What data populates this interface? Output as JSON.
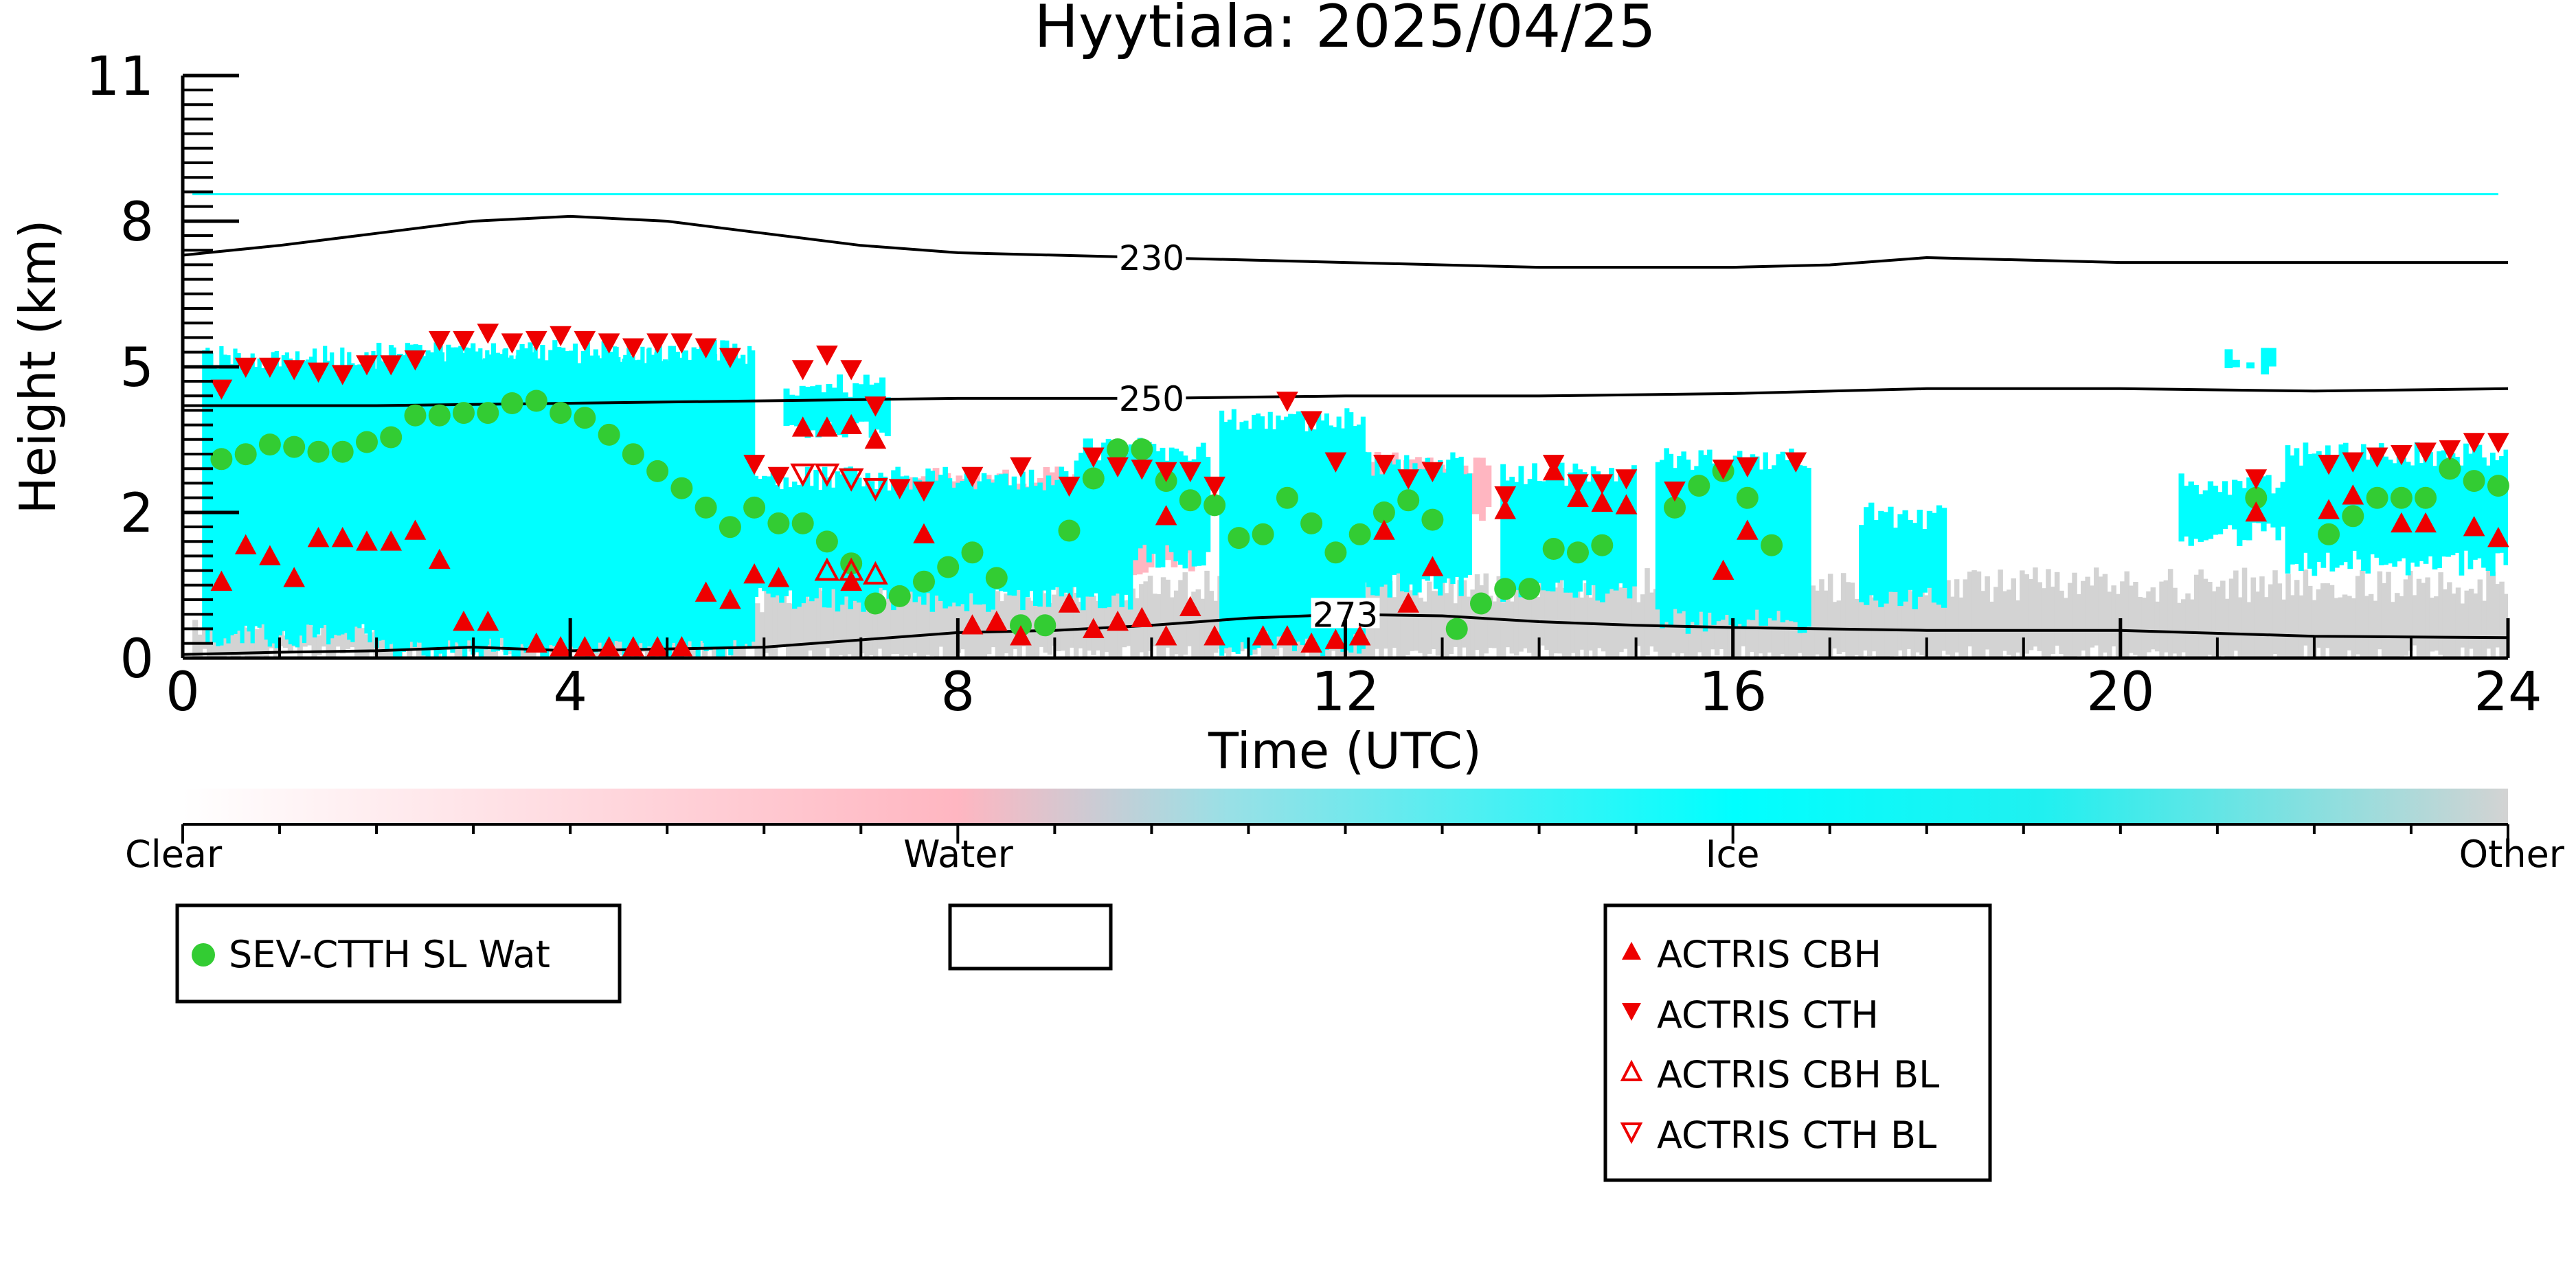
{
  "chart_data": {
    "type": "scatter",
    "title": "Hyytiala: 2025/04/25",
    "xlabel": "Time (UTC)",
    "ylabel": "Height (km)",
    "xlim": [
      0,
      24
    ],
    "ylim": [
      0,
      12
    ],
    "x_ticks": [
      0,
      4,
      8,
      12,
      16,
      20,
      24
    ],
    "y_ticks": [
      0,
      2,
      5,
      8,
      11
    ],
    "y_tick_labels": [
      "0",
      "2",
      "5",
      "8",
      "11"
    ],
    "y_axis_scale": "nonlinear (labels 0, 2, 5, 8, 11 equally spaced)",
    "background": "cloud phase mask (Clear / Water / Ice / Other)",
    "colorbar": {
      "labels": [
        "Clear",
        "Water",
        "Ice",
        "Other"
      ],
      "colors": [
        "#ffffff",
        "#ffb6c1",
        "#00ffff",
        "#d3d3d3"
      ]
    },
    "legend_left": {
      "entries": [
        {
          "label": "SEV-CTTH SL Wat",
          "marker": "circle",
          "color": "#33cc33"
        }
      ]
    },
    "legend_right": {
      "entries": [
        {
          "label": "ACTRIS CBH",
          "marker": "triangle-up",
          "color": "#ee0000"
        },
        {
          "label": "ACTRIS CTH",
          "marker": "triangle-down",
          "color": "#ee0000"
        },
        {
          "label": "ACTRIS CBH BL",
          "marker": "triangle-up-open",
          "color": "#ee0000"
        },
        {
          "label": "ACTRIS CTH BL",
          "marker": "triangle-down-open",
          "color": "#ee0000"
        }
      ]
    },
    "contours": [
      {
        "label": "230",
        "points": [
          [
            0,
            7.3
          ],
          [
            1,
            7.5
          ],
          [
            2,
            7.75
          ],
          [
            3,
            8.0
          ],
          [
            4,
            8.1
          ],
          [
            5,
            8.0
          ],
          [
            6,
            7.75
          ],
          [
            7,
            7.5
          ],
          [
            8,
            7.35
          ],
          [
            10,
            7.25
          ],
          [
            12,
            7.15
          ],
          [
            14,
            7.05
          ],
          [
            16,
            7.05
          ],
          [
            17,
            7.1
          ],
          [
            18,
            7.25
          ],
          [
            20,
            7.15
          ],
          [
            22,
            7.15
          ],
          [
            24,
            7.15
          ]
        ]
      },
      {
        "label": "250",
        "points": [
          [
            0,
            4.2
          ],
          [
            2,
            4.2
          ],
          [
            4,
            4.25
          ],
          [
            6,
            4.3
          ],
          [
            8,
            4.35
          ],
          [
            10,
            4.35
          ],
          [
            12,
            4.4
          ],
          [
            14,
            4.4
          ],
          [
            16,
            4.45
          ],
          [
            18,
            4.55
          ],
          [
            20,
            4.55
          ],
          [
            22,
            4.5
          ],
          [
            24,
            4.55
          ]
        ]
      },
      {
        "label": "273",
        "points": [
          [
            0,
            0.05
          ],
          [
            1,
            0.08
          ],
          [
            2,
            0.1
          ],
          [
            3,
            0.15
          ],
          [
            4,
            0.1
          ],
          [
            6,
            0.15
          ],
          [
            7,
            0.25
          ],
          [
            8,
            0.35
          ],
          [
            9,
            0.38
          ],
          [
            10,
            0.45
          ],
          [
            11,
            0.55
          ],
          [
            12,
            0.6
          ],
          [
            13,
            0.58
          ],
          [
            14,
            0.5
          ],
          [
            15,
            0.45
          ],
          [
            16,
            0.42
          ],
          [
            18,
            0.38
          ],
          [
            20,
            0.38
          ],
          [
            22,
            0.3
          ],
          [
            24,
            0.28
          ]
        ]
      }
    ],
    "series": [
      {
        "name": "SEV-CTTH SL Wat",
        "marker": "circle",
        "color": "#33cc33",
        "points": [
          [
            0.4,
            3.1
          ],
          [
            0.65,
            3.2
          ],
          [
            0.9,
            3.4
          ],
          [
            1.15,
            3.35
          ],
          [
            1.4,
            3.25
          ],
          [
            1.65,
            3.25
          ],
          [
            1.9,
            3.45
          ],
          [
            2.15,
            3.55
          ],
          [
            2.4,
            4.0
          ],
          [
            2.65,
            4.0
          ],
          [
            2.9,
            4.05
          ],
          [
            3.15,
            4.05
          ],
          [
            3.4,
            4.25
          ],
          [
            3.65,
            4.3
          ],
          [
            3.9,
            4.05
          ],
          [
            4.15,
            3.95
          ],
          [
            4.4,
            3.6
          ],
          [
            4.65,
            3.2
          ],
          [
            4.9,
            2.85
          ],
          [
            5.15,
            2.5
          ],
          [
            5.4,
            2.1
          ],
          [
            5.65,
            1.8
          ],
          [
            5.9,
            2.1
          ],
          [
            6.15,
            1.85
          ],
          [
            6.4,
            1.85
          ],
          [
            6.65,
            1.6
          ],
          [
            6.9,
            1.3
          ],
          [
            7.15,
            0.75
          ],
          [
            7.4,
            0.85
          ],
          [
            7.65,
            1.05
          ],
          [
            7.9,
            1.25
          ],
          [
            8.15,
            1.45
          ],
          [
            8.4,
            1.1
          ],
          [
            8.65,
            0.45
          ],
          [
            8.9,
            0.45
          ],
          [
            9.15,
            1.75
          ],
          [
            9.4,
            2.7
          ],
          [
            9.65,
            3.3
          ],
          [
            9.9,
            3.3
          ],
          [
            10.15,
            2.65
          ],
          [
            10.4,
            2.25
          ],
          [
            10.65,
            2.15
          ],
          [
            10.9,
            1.65
          ],
          [
            11.15,
            1.7
          ],
          [
            11.4,
            2.3
          ],
          [
            11.65,
            1.85
          ],
          [
            11.9,
            1.45
          ],
          [
            12.15,
            1.7
          ],
          [
            12.4,
            2.0
          ],
          [
            12.65,
            2.25
          ],
          [
            12.9,
            1.9
          ],
          [
            13.15,
            0.4
          ],
          [
            13.4,
            0.75
          ],
          [
            13.65,
            0.95
          ],
          [
            13.9,
            0.95
          ],
          [
            14.15,
            1.5
          ],
          [
            14.4,
            1.45
          ],
          [
            14.65,
            1.55
          ],
          [
            15.4,
            2.1
          ],
          [
            15.65,
            2.55
          ],
          [
            15.9,
            2.85
          ],
          [
            16.15,
            2.3
          ],
          [
            16.4,
            1.55
          ],
          [
            21.4,
            2.3
          ],
          [
            22.15,
            1.7
          ],
          [
            22.4,
            1.95
          ],
          [
            22.65,
            2.3
          ],
          [
            22.9,
            2.3
          ],
          [
            23.15,
            2.3
          ],
          [
            23.4,
            2.9
          ],
          [
            23.65,
            2.65
          ],
          [
            23.9,
            2.55
          ]
        ]
      },
      {
        "name": "ACTRIS CBH",
        "marker": "triangle-up",
        "color": "#ee0000",
        "points": [
          [
            0.4,
            1.05
          ],
          [
            0.65,
            1.55
          ],
          [
            0.9,
            1.4
          ],
          [
            1.15,
            1.1
          ],
          [
            1.4,
            1.65
          ],
          [
            1.65,
            1.65
          ],
          [
            1.9,
            1.6
          ],
          [
            2.15,
            1.6
          ],
          [
            2.4,
            1.75
          ],
          [
            2.65,
            1.35
          ],
          [
            2.9,
            0.5
          ],
          [
            3.15,
            0.5
          ],
          [
            3.65,
            0.2
          ],
          [
            3.9,
            0.15
          ],
          [
            4.15,
            0.15
          ],
          [
            4.4,
            0.15
          ],
          [
            4.65,
            0.15
          ],
          [
            4.9,
            0.15
          ],
          [
            5.15,
            0.15
          ],
          [
            5.4,
            0.9
          ],
          [
            5.65,
            0.8
          ],
          [
            5.9,
            1.15
          ],
          [
            6.15,
            1.1
          ],
          [
            6.4,
            3.75
          ],
          [
            6.65,
            3.75
          ],
          [
            6.9,
            3.8
          ],
          [
            7.15,
            3.5
          ],
          [
            6.9,
            1.05
          ],
          [
            7.65,
            1.7
          ],
          [
            8.15,
            0.45
          ],
          [
            8.4,
            0.5
          ],
          [
            8.65,
            0.3
          ],
          [
            9.15,
            0.75
          ],
          [
            9.4,
            0.4
          ],
          [
            9.65,
            0.5
          ],
          [
            9.9,
            0.55
          ],
          [
            10.15,
            0.3
          ],
          [
            10.15,
            1.95
          ],
          [
            10.4,
            0.7
          ],
          [
            10.65,
            0.3
          ],
          [
            11.15,
            0.3
          ],
          [
            11.4,
            0.3
          ],
          [
            11.65,
            0.2
          ],
          [
            11.9,
            0.25
          ],
          [
            12.15,
            0.3
          ],
          [
            12.4,
            1.75
          ],
          [
            12.65,
            0.75
          ],
          [
            12.9,
            1.25
          ],
          [
            13.65,
            2.05
          ],
          [
            14.15,
            2.85
          ],
          [
            14.4,
            2.3
          ],
          [
            14.65,
            2.2
          ],
          [
            14.9,
            2.15
          ],
          [
            15.9,
            1.2
          ],
          [
            16.15,
            1.75
          ],
          [
            21.4,
            2.0
          ],
          [
            22.15,
            2.05
          ],
          [
            22.4,
            2.35
          ],
          [
            22.9,
            1.85
          ],
          [
            23.15,
            1.85
          ],
          [
            23.65,
            1.8
          ],
          [
            23.9,
            1.65
          ]
        ]
      },
      {
        "name": "ACTRIS CTH",
        "marker": "triangle-down",
        "color": "#ee0000",
        "points": [
          [
            0.4,
            4.55
          ],
          [
            0.65,
            5.0
          ],
          [
            0.9,
            5.0
          ],
          [
            1.15,
            4.95
          ],
          [
            1.4,
            4.9
          ],
          [
            1.65,
            4.85
          ],
          [
            1.9,
            5.05
          ],
          [
            2.15,
            5.05
          ],
          [
            2.4,
            5.15
          ],
          [
            2.65,
            5.55
          ],
          [
            2.9,
            5.55
          ],
          [
            3.15,
            5.7
          ],
          [
            3.4,
            5.5
          ],
          [
            3.65,
            5.55
          ],
          [
            3.9,
            5.65
          ],
          [
            4.15,
            5.55
          ],
          [
            4.4,
            5.5
          ],
          [
            4.65,
            5.4
          ],
          [
            4.9,
            5.5
          ],
          [
            5.15,
            5.5
          ],
          [
            5.4,
            5.4
          ],
          [
            5.65,
            5.2
          ],
          [
            5.9,
            3.0
          ],
          [
            6.15,
            2.75
          ],
          [
            6.4,
            4.95
          ],
          [
            6.65,
            5.25
          ],
          [
            6.9,
            4.95
          ],
          [
            7.15,
            4.2
          ],
          [
            7.4,
            2.5
          ],
          [
            7.65,
            2.45
          ],
          [
            8.15,
            2.75
          ],
          [
            8.65,
            2.95
          ],
          [
            9.15,
            2.55
          ],
          [
            9.4,
            3.15
          ],
          [
            9.65,
            2.95
          ],
          [
            9.9,
            2.9
          ],
          [
            10.15,
            2.85
          ],
          [
            10.4,
            2.85
          ],
          [
            10.65,
            2.55
          ],
          [
            11.4,
            4.3
          ],
          [
            11.65,
            3.9
          ],
          [
            11.9,
            3.05
          ],
          [
            12.4,
            3.0
          ],
          [
            12.65,
            2.7
          ],
          [
            12.9,
            2.85
          ],
          [
            13.65,
            2.35
          ],
          [
            14.15,
            3.0
          ],
          [
            14.4,
            2.6
          ],
          [
            14.65,
            2.6
          ],
          [
            14.9,
            2.7
          ],
          [
            15.4,
            2.45
          ],
          [
            15.9,
            2.9
          ],
          [
            16.15,
            2.95
          ],
          [
            16.65,
            3.05
          ],
          [
            21.4,
            2.7
          ],
          [
            22.15,
            3.0
          ],
          [
            22.4,
            3.05
          ],
          [
            22.65,
            3.15
          ],
          [
            22.9,
            3.2
          ],
          [
            23.15,
            3.25
          ],
          [
            23.4,
            3.3
          ],
          [
            23.65,
            3.45
          ],
          [
            23.9,
            3.45
          ]
        ]
      },
      {
        "name": "ACTRIS CBH BL",
        "marker": "triangle-up-open",
        "color": "#ee0000",
        "points": [
          [
            6.65,
            1.2
          ],
          [
            6.9,
            1.2
          ],
          [
            7.15,
            1.15
          ]
        ]
      },
      {
        "name": "ACTRIS CTH BL",
        "marker": "triangle-down-open",
        "color": "#ee0000",
        "points": [
          [
            6.4,
            2.8
          ],
          [
            6.65,
            2.8
          ],
          [
            6.9,
            2.7
          ],
          [
            7.15,
            2.5
          ]
        ]
      }
    ]
  }
}
